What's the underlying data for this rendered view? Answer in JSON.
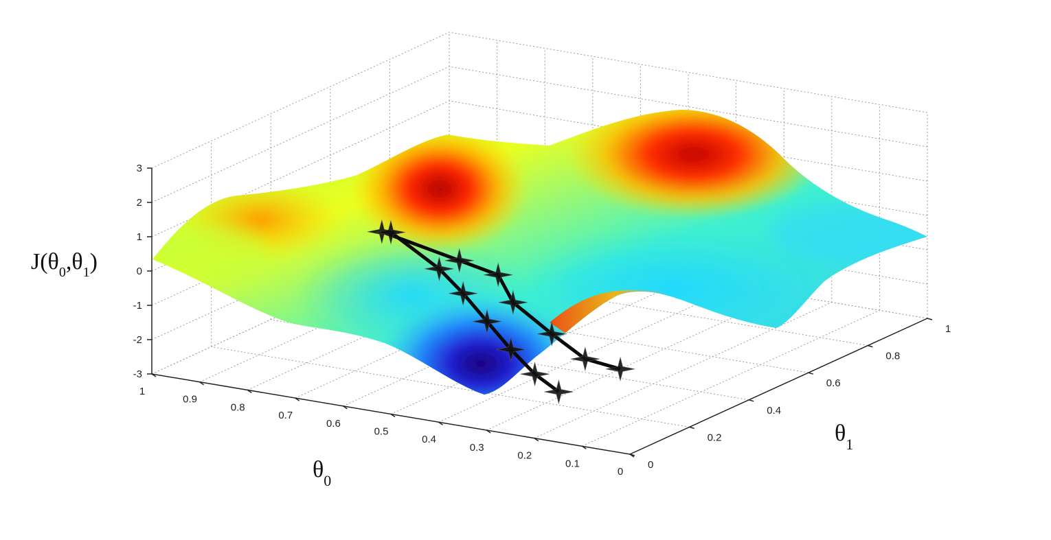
{
  "chart_data": {
    "type": "surface",
    "xlabel_base": "θ",
    "xlabel_sub": "0",
    "ylabel_base": "θ",
    "ylabel_sub": "1",
    "zlabel": {
      "prefix": "J(θ",
      "sub1": "0",
      "mid": ",θ",
      "sub2": "1",
      "suffix": ")"
    },
    "x_ticks": [
      "1",
      "0.9",
      "0.8",
      "0.7",
      "0.6",
      "0.5",
      "0.4",
      "0.3",
      "0.2",
      "0.1",
      "0"
    ],
    "y_ticks": [
      "0",
      "0.2",
      "0.4",
      "0.6",
      "0.8",
      "1"
    ],
    "z_ticks": [
      "3",
      "2",
      "1",
      "0",
      "-1",
      "-2",
      "-3"
    ],
    "xlim": [
      0,
      1
    ],
    "ylim": [
      0,
      1
    ],
    "zlim": [
      -3,
      3
    ],
    "grid": true,
    "colormap": "jet",
    "paths": [
      {
        "points": [
          {
            "x": 0.55,
            "y": 0.05,
            "z": 2.0
          },
          {
            "x": 0.45,
            "y": 0.15,
            "z": 1.0
          },
          {
            "x": 0.4,
            "y": 0.2,
            "z": 0.5
          },
          {
            "x": 0.4,
            "y": 0.25,
            "z": -0.5
          },
          {
            "x": 0.35,
            "y": 0.3,
            "z": -1.5
          },
          {
            "x": 0.33,
            "y": 0.38,
            "z": -2.5
          },
          {
            "x": 0.3,
            "y": 0.45,
            "z": -3.0
          }
        ]
      },
      {
        "points": [
          {
            "x": 0.5,
            "y": 0.0,
            "z": 2.3
          },
          {
            "x": 0.43,
            "y": 0.05,
            "z": 1.2
          },
          {
            "x": 0.38,
            "y": 0.05,
            "z": 0.6
          },
          {
            "x": 0.33,
            "y": 0.05,
            "z": -0.1
          },
          {
            "x": 0.28,
            "y": 0.05,
            "z": -0.8
          },
          {
            "x": 0.23,
            "y": 0.05,
            "z": -1.4
          },
          {
            "x": 0.18,
            "y": 0.05,
            "z": -1.8
          }
        ]
      }
    ]
  }
}
